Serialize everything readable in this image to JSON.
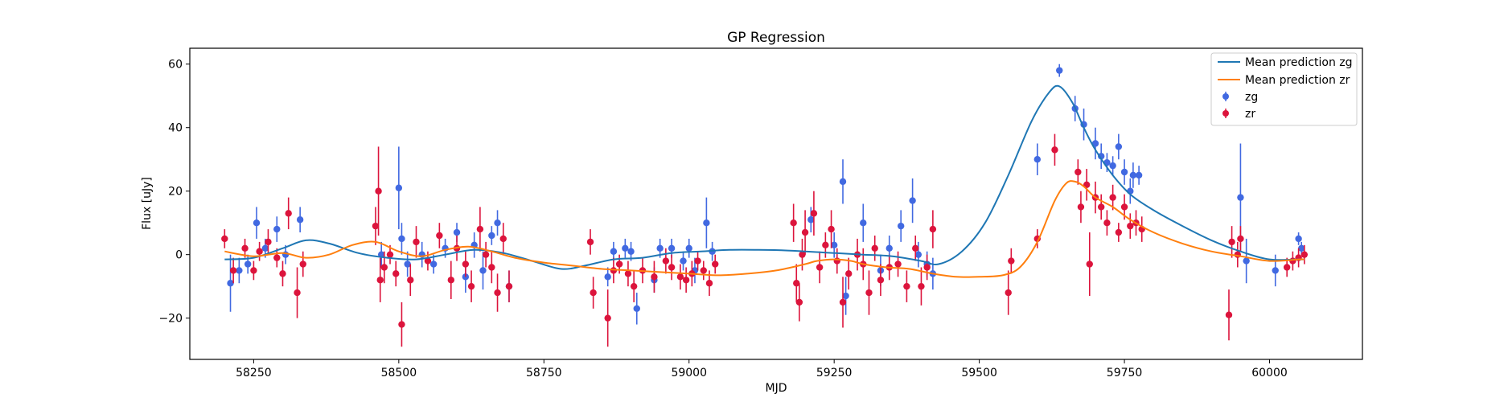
{
  "chart_data": {
    "type": "scatter",
    "title": "GP Regression",
    "xlabel": "MJD",
    "ylabel": "Flux [uJy]",
    "xlim": [
      58140,
      60160
    ],
    "ylim": [
      -33,
      65
    ],
    "xticks": [
      58250,
      58500,
      58750,
      59000,
      59250,
      59500,
      59750,
      60000
    ],
    "yticks": [
      -20,
      0,
      20,
      40,
      60
    ],
    "grid": false,
    "legend_position": "top-right",
    "legend": {
      "line_zg": "Mean prediction zg",
      "line_zr": "Mean prediction zr",
      "points_zg": "zg",
      "points_zr": "zr"
    },
    "colors": {
      "line_zg": "#1f77b4",
      "line_zr": "#ff7f0e",
      "points_zg": "#4169e1",
      "points_zr": "#dc143c"
    },
    "series": [
      {
        "name": "Mean prediction zg",
        "kind": "line",
        "x": [
          58200,
          58250,
          58300,
          58340,
          58380,
          58430,
          58480,
          58530,
          58580,
          58630,
          58680,
          58730,
          58780,
          58820,
          58870,
          58920,
          58970,
          59020,
          59070,
          59120,
          59170,
          59200,
          59250,
          59300,
          59350,
          59400,
          59430,
          59470,
          59510,
          59550,
          59590,
          59620,
          59638,
          59660,
          59680,
          59700,
          59730,
          59760,
          59800,
          59850,
          59900,
          59950,
          60000,
          60050,
          60060
        ],
        "y": [
          -1.5,
          -1,
          2,
          4.5,
          3.5,
          0.5,
          -1,
          -1.5,
          0,
          1.5,
          0.5,
          -2,
          -4.5,
          -3.5,
          -1.5,
          -1,
          0.5,
          1,
          1.5,
          1.5,
          1.3,
          1,
          0.5,
          0,
          -0.5,
          -2,
          -3,
          1,
          10,
          25,
          42,
          51,
          53,
          48,
          40,
          33,
          25,
          19,
          14,
          9,
          4.5,
          1,
          -1.5,
          -1.5,
          -1.5
        ]
      },
      {
        "name": "Mean prediction zr",
        "kind": "line",
        "x": [
          58200,
          58250,
          58300,
          58340,
          58380,
          58420,
          58460,
          58500,
          58540,
          58580,
          58620,
          58660,
          58700,
          58750,
          58800,
          58850,
          58900,
          58950,
          59000,
          59050,
          59100,
          59150,
          59200,
          59220,
          59250,
          59280,
          59300,
          59340,
          59380,
          59420,
          59460,
          59500,
          59540,
          59570,
          59600,
          59630,
          59650,
          59665,
          59680,
          59700,
          59730,
          59760,
          59800,
          59850,
          59900,
          59950,
          60000,
          60050,
          60060
        ],
        "y": [
          1,
          -0.5,
          0.5,
          -1,
          0,
          3,
          4,
          1,
          -0.5,
          1.5,
          2.5,
          1,
          -1,
          -2.5,
          -3.5,
          -4.5,
          -5,
          -5.5,
          -6,
          -6.5,
          -6,
          -5,
          -3,
          -2,
          -1.5,
          -2,
          -3,
          -4,
          -4.5,
          -6,
          -7,
          -7,
          -6.5,
          -4,
          4,
          17,
          22.5,
          23,
          21.5,
          18,
          15,
          11,
          7,
          3.5,
          1,
          -0.5,
          -2,
          -1.5,
          -1.5
        ]
      },
      {
        "name": "zg",
        "kind": "errorbar",
        "points": [
          [
            58210,
            -9,
            9
          ],
          [
            58225,
            -5,
            4
          ],
          [
            58240,
            -3,
            3
          ],
          [
            58255,
            10,
            5
          ],
          [
            58270,
            2,
            3
          ],
          [
            58290,
            8,
            4
          ],
          [
            58305,
            0,
            3
          ],
          [
            58330,
            11,
            4
          ],
          [
            58470,
            0,
            4
          ],
          [
            58500,
            21,
            13
          ],
          [
            58505,
            5,
            5
          ],
          [
            58515,
            -3,
            4
          ],
          [
            58540,
            0,
            4
          ],
          [
            58560,
            -3,
            3
          ],
          [
            58580,
            2,
            3
          ],
          [
            58600,
            7,
            3
          ],
          [
            58615,
            -7,
            5
          ],
          [
            58630,
            3,
            4
          ],
          [
            58645,
            -5,
            6
          ],
          [
            58660,
            6,
            3
          ],
          [
            58670,
            10,
            4
          ],
          [
            58690,
            -10,
            5
          ],
          [
            58860,
            -7,
            3
          ],
          [
            58870,
            1,
            3
          ],
          [
            58890,
            2,
            3
          ],
          [
            58900,
            1,
            3
          ],
          [
            58910,
            -17,
            5
          ],
          [
            58940,
            -8,
            4
          ],
          [
            58950,
            2,
            3
          ],
          [
            58970,
            2,
            3
          ],
          [
            58990,
            -2,
            3
          ],
          [
            59000,
            2,
            3
          ],
          [
            59010,
            -5,
            4
          ],
          [
            59030,
            10,
            8
          ],
          [
            59040,
            1,
            3
          ],
          [
            59210,
            11,
            4
          ],
          [
            59250,
            3,
            4
          ],
          [
            59265,
            23,
            7
          ],
          [
            59270,
            -13,
            6
          ],
          [
            59300,
            10,
            6
          ],
          [
            59330,
            -5,
            5
          ],
          [
            59345,
            2,
            4
          ],
          [
            59365,
            9,
            5
          ],
          [
            59385,
            17,
            7
          ],
          [
            59395,
            0,
            4
          ],
          [
            59410,
            -3,
            4
          ],
          [
            59420,
            -6,
            5
          ],
          [
            59600,
            30,
            5
          ],
          [
            59638,
            58,
            2
          ],
          [
            59665,
            46,
            4
          ],
          [
            59680,
            41,
            5
          ],
          [
            59700,
            35,
            5
          ],
          [
            59710,
            31,
            4
          ],
          [
            59720,
            29,
            3
          ],
          [
            59730,
            28,
            3
          ],
          [
            59740,
            34,
            4
          ],
          [
            59750,
            26,
            4
          ],
          [
            59760,
            20,
            4
          ],
          [
            59765,
            25,
            4
          ],
          [
            59775,
            25,
            3
          ],
          [
            59950,
            18,
            17
          ],
          [
            59960,
            -2,
            7
          ],
          [
            60010,
            -5,
            5
          ],
          [
            60050,
            5,
            2
          ],
          [
            60055,
            2,
            2
          ]
        ]
      },
      {
        "name": "zr",
        "kind": "errorbar",
        "points": [
          [
            58200,
            5,
            3
          ],
          [
            58215,
            -5,
            4
          ],
          [
            58235,
            2,
            3
          ],
          [
            58250,
            -5,
            3
          ],
          [
            58260,
            1,
            3
          ],
          [
            58275,
            4,
            4
          ],
          [
            58290,
            -1,
            3
          ],
          [
            58300,
            -6,
            4
          ],
          [
            58310,
            13,
            5
          ],
          [
            58325,
            -12,
            8
          ],
          [
            58335,
            -3,
            4
          ],
          [
            58460,
            9,
            6
          ],
          [
            58465,
            20,
            14
          ],
          [
            58468,
            -8,
            7
          ],
          [
            58475,
            -4,
            5
          ],
          [
            58485,
            0,
            3
          ],
          [
            58495,
            -6,
            4
          ],
          [
            58505,
            -22,
            7
          ],
          [
            58520,
            -8,
            5
          ],
          [
            58530,
            4,
            5
          ],
          [
            58550,
            -2,
            3
          ],
          [
            58570,
            6,
            4
          ],
          [
            58590,
            -8,
            6
          ],
          [
            58600,
            2,
            4
          ],
          [
            58615,
            -3,
            4
          ],
          [
            58625,
            -10,
            5
          ],
          [
            58640,
            8,
            7
          ],
          [
            58650,
            0,
            4
          ],
          [
            58660,
            -4,
            5
          ],
          [
            58670,
            -12,
            6
          ],
          [
            58680,
            5,
            5
          ],
          [
            58690,
            -10,
            5
          ],
          [
            58830,
            4,
            4
          ],
          [
            58835,
            -12,
            5
          ],
          [
            58860,
            -20,
            9
          ],
          [
            58870,
            -5,
            4
          ],
          [
            58880,
            -3,
            3
          ],
          [
            58895,
            -6,
            4
          ],
          [
            58905,
            -10,
            5
          ],
          [
            58920,
            -5,
            4
          ],
          [
            58940,
            -7,
            5
          ],
          [
            58960,
            -2,
            4
          ],
          [
            58970,
            -4,
            4
          ],
          [
            58985,
            -7,
            4
          ],
          [
            58995,
            -8,
            4
          ],
          [
            59005,
            -6,
            4
          ],
          [
            59015,
            -2,
            3
          ],
          [
            59025,
            -5,
            3
          ],
          [
            59035,
            -9,
            4
          ],
          [
            59045,
            -3,
            3
          ],
          [
            59180,
            10,
            6
          ],
          [
            59185,
            -9,
            6
          ],
          [
            59190,
            -15,
            6
          ],
          [
            59195,
            0,
            5
          ],
          [
            59200,
            7,
            7
          ],
          [
            59215,
            13,
            7
          ],
          [
            59225,
            -4,
            5
          ],
          [
            59235,
            3,
            4
          ],
          [
            59245,
            8,
            6
          ],
          [
            59255,
            -2,
            4
          ],
          [
            59265,
            -15,
            8
          ],
          [
            59275,
            -6,
            5
          ],
          [
            59290,
            0,
            5
          ],
          [
            59300,
            -3,
            5
          ],
          [
            59310,
            -12,
            7
          ],
          [
            59320,
            2,
            4
          ],
          [
            59330,
            -8,
            5
          ],
          [
            59345,
            -4,
            4
          ],
          [
            59360,
            -3,
            4
          ],
          [
            59375,
            -10,
            5
          ],
          [
            59390,
            2,
            4
          ],
          [
            59400,
            -10,
            6
          ],
          [
            59410,
            -4,
            4
          ],
          [
            59420,
            8,
            6
          ],
          [
            59550,
            -12,
            7
          ],
          [
            59555,
            -2,
            4
          ],
          [
            59600,
            5,
            3
          ],
          [
            59630,
            33,
            5
          ],
          [
            59670,
            26,
            4
          ],
          [
            59675,
            15,
            5
          ],
          [
            59685,
            22,
            5
          ],
          [
            59690,
            -3,
            10
          ],
          [
            59700,
            18,
            5
          ],
          [
            59710,
            15,
            4
          ],
          [
            59720,
            10,
            4
          ],
          [
            59730,
            18,
            4
          ],
          [
            59740,
            7,
            3
          ],
          [
            59750,
            15,
            4
          ],
          [
            59760,
            9,
            4
          ],
          [
            59770,
            10,
            4
          ],
          [
            59780,
            8,
            4
          ],
          [
            59930,
            -19,
            8
          ],
          [
            59935,
            4,
            5
          ],
          [
            59945,
            0,
            4
          ],
          [
            59950,
            5,
            4
          ],
          [
            60030,
            -4,
            3
          ],
          [
            60040,
            -2,
            3
          ],
          [
            60050,
            -1,
            3
          ],
          [
            60060,
            0,
            3
          ]
        ]
      }
    ]
  }
}
